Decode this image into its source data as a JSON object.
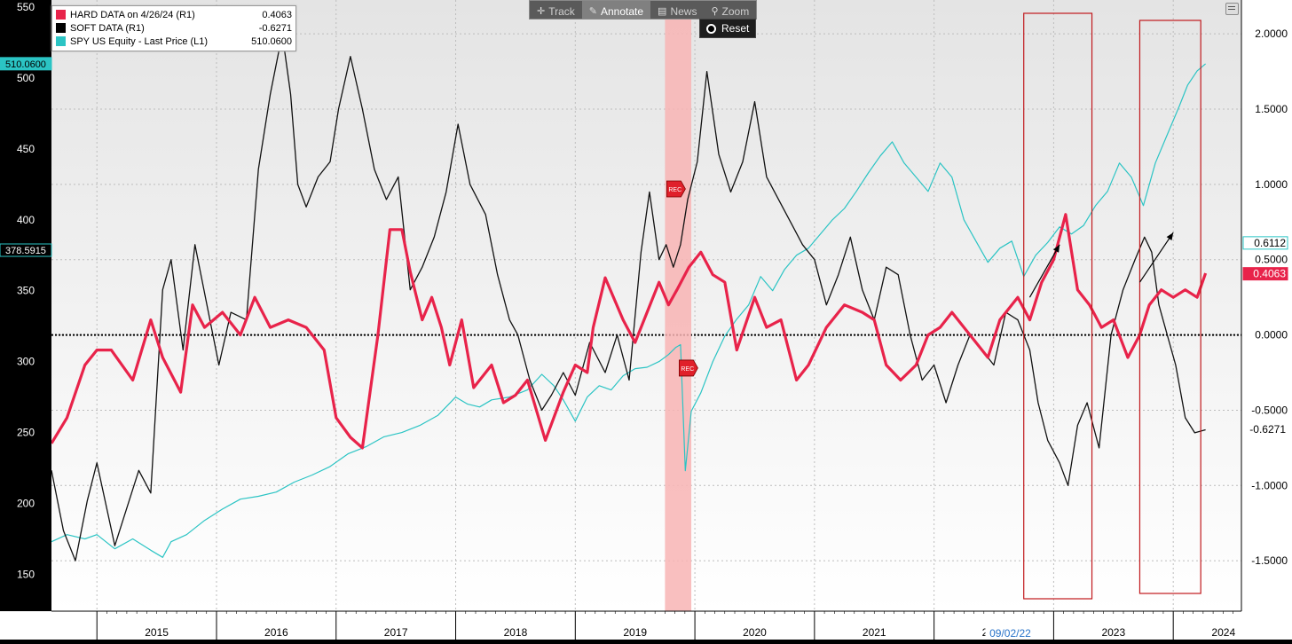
{
  "toolbar": {
    "buttons": [
      {
        "label": "Track",
        "icon": "crosshair-icon",
        "active": false
      },
      {
        "label": "Annotate",
        "icon": "pencil-icon",
        "active": true
      },
      {
        "label": "News",
        "icon": "news-icon",
        "active": false
      },
      {
        "label": "Zoom",
        "icon": "magnifier-icon",
        "active": false
      }
    ],
    "reset_label": "Reset"
  },
  "legend": [
    {
      "name": "HARD DATA on 4/26/24 (R1)",
      "value": "0.4063",
      "color": "#e8234a"
    },
    {
      "name": "SOFT DATA (R1)",
      "value": "-0.6271",
      "color": "#000000"
    },
    {
      "name": "SPY US Equity - Last Price (L1)",
      "value": "510.0600",
      "color": "#2bc4c4"
    }
  ],
  "chart_data": {
    "type": "line",
    "title": "",
    "x_axis": {
      "range": [
        2014.62,
        2024.57
      ],
      "year_labels": [
        "2015",
        "2016",
        "2017",
        "2018",
        "2019",
        "2020",
        "2021",
        "2022",
        "2023",
        "2024"
      ],
      "date_flag": "09/02/22"
    },
    "left_axis": {
      "range": [
        124,
        555
      ],
      "ticks": [
        150,
        200,
        250,
        300,
        350,
        400,
        450,
        500,
        550
      ],
      "tick_labels": [
        "150",
        "200",
        "250",
        "300",
        "350",
        "400",
        "450",
        "500",
        "550"
      ],
      "flags": [
        "510.0600",
        "378.5915"
      ]
    },
    "right_axis": {
      "range": [
        -1.835,
        2.225
      ],
      "ticks": [
        -1.5,
        -1.0,
        -0.5,
        0.0,
        0.5,
        1.0,
        1.5,
        2.0
      ],
      "tick_labels": [
        "-1.5000",
        "-1.0000",
        "-0.5000",
        "0.0000",
        "0.5000",
        "1.0000",
        "1.5000",
        "2.0000"
      ],
      "flags": [
        "0.6112",
        "0.4063",
        "-0.6271"
      ],
      "zero_line": 0.0
    },
    "grid": true,
    "legend_position": "top-left",
    "recession_band": {
      "from": 2019.75,
      "to": 2019.97,
      "label": "REC",
      "color": "#f8b4b4"
    },
    "highlight_boxes": [
      {
        "from": 2022.75,
        "to": 2023.32
      },
      {
        "from": 2023.72,
        "to": 2024.23
      }
    ],
    "arrows": [
      {
        "x1": 2022.8,
        "y1": 0.25,
        "x2": 2023.05,
        "y2": 0.6
      },
      {
        "x1": 2023.72,
        "y1": 0.35,
        "x2": 2024.0,
        "y2": 0.68
      }
    ],
    "series": [
      {
        "name": "HARD DATA on 4/26/24 (R1)",
        "axis": "right",
        "color": "#e8234a",
        "width": 3.2,
        "x": [
          2014.62,
          2014.75,
          2014.9,
          2015.0,
          2015.12,
          2015.3,
          2015.45,
          2015.55,
          2015.7,
          2015.8,
          2015.9,
          2016.05,
          2016.2,
          2016.32,
          2016.45,
          2016.6,
          2016.75,
          2016.9,
          2017.0,
          2017.12,
          2017.22,
          2017.35,
          2017.45,
          2017.55,
          2017.62,
          2017.72,
          2017.8,
          2017.88,
          2017.95,
          2018.05,
          2018.15,
          2018.3,
          2018.4,
          2018.5,
          2018.6,
          2018.75,
          2018.9,
          2019.0,
          2019.1,
          2019.15,
          2019.25,
          2019.4,
          2019.5,
          2019.6,
          2019.7,
          2019.78,
          2019.85,
          2019.95,
          2020.05,
          2020.15,
          2020.25,
          2020.35,
          2020.5,
          2020.6,
          2020.72,
          2020.85,
          2020.95,
          2021.1,
          2021.25,
          2021.4,
          2021.5,
          2021.6,
          2021.72,
          2021.85,
          2021.95,
          2022.05,
          2022.15,
          2022.3,
          2022.45,
          2022.55,
          2022.7,
          2022.8,
          2022.9,
          2023.0,
          2023.1,
          2023.2,
          2023.3,
          2023.4,
          2023.5,
          2023.62,
          2023.72,
          2023.8,
          2023.9,
          2024.0,
          2024.1,
          2024.2,
          2024.27
        ],
        "values": [
          -0.72,
          -0.55,
          -0.2,
          -0.1,
          -0.1,
          -0.3,
          0.1,
          -0.15,
          -0.38,
          0.2,
          0.05,
          0.15,
          0.0,
          0.25,
          0.05,
          0.1,
          0.05,
          -0.1,
          -0.55,
          -0.68,
          -0.75,
          0.0,
          0.7,
          0.7,
          0.42,
          0.1,
          0.25,
          0.05,
          -0.2,
          0.1,
          -0.35,
          -0.2,
          -0.45,
          -0.4,
          -0.3,
          -0.7,
          -0.38,
          -0.2,
          -0.25,
          0.05,
          0.38,
          0.1,
          -0.05,
          0.15,
          0.35,
          0.2,
          0.3,
          0.45,
          0.55,
          0.4,
          0.35,
          -0.1,
          0.25,
          0.05,
          0.1,
          -0.3,
          -0.2,
          0.05,
          0.2,
          0.15,
          0.1,
          -0.2,
          -0.3,
          -0.2,
          0.0,
          0.05,
          0.15,
          0.0,
          -0.15,
          0.1,
          0.25,
          0.1,
          0.35,
          0.5,
          0.8,
          0.3,
          0.2,
          0.05,
          0.1,
          -0.15,
          0.0,
          0.2,
          0.3,
          0.25,
          0.3,
          0.25,
          0.41
        ]
      },
      {
        "name": "SOFT DATA (R1)",
        "axis": "right",
        "color": "#111111",
        "width": 1.3,
        "x": [
          2014.62,
          2014.72,
          2014.82,
          2014.92,
          2015.0,
          2015.15,
          2015.35,
          2015.45,
          2015.55,
          2015.62,
          2015.72,
          2015.82,
          2015.92,
          2016.02,
          2016.12,
          2016.25,
          2016.35,
          2016.45,
          2016.55,
          2016.62,
          2016.68,
          2016.75,
          2016.85,
          2016.95,
          2017.02,
          2017.12,
          2017.22,
          2017.32,
          2017.42,
          2017.52,
          2017.62,
          2017.72,
          2017.82,
          2017.92,
          2018.02,
          2018.12,
          2018.25,
          2018.35,
          2018.45,
          2018.52,
          2018.62,
          2018.72,
          2018.8,
          2018.9,
          2019.0,
          2019.12,
          2019.25,
          2019.35,
          2019.45,
          2019.55,
          2019.62,
          2019.7,
          2019.76,
          2019.82,
          2019.88,
          2019.94,
          2020.02,
          2020.1,
          2020.2,
          2020.3,
          2020.4,
          2020.5,
          2020.6,
          2020.7,
          2020.8,
          2020.9,
          2021.0,
          2021.1,
          2021.2,
          2021.3,
          2021.4,
          2021.5,
          2021.6,
          2021.7,
          2021.8,
          2021.9,
          2022.0,
          2022.1,
          2022.2,
          2022.3,
          2022.4,
          2022.5,
          2022.6,
          2022.7,
          2022.8,
          2022.87,
          2022.95,
          2023.05,
          2023.12,
          2023.2,
          2023.28,
          2023.38,
          2023.48,
          2023.58,
          2023.68,
          2023.76,
          2023.82,
          2023.88,
          2023.95,
          2024.02,
          2024.1,
          2024.18,
          2024.27
        ],
        "values": [
          -0.9,
          -1.3,
          -1.5,
          -1.1,
          -0.85,
          -1.4,
          -0.9,
          -1.05,
          0.3,
          0.5,
          -0.1,
          0.6,
          0.2,
          -0.2,
          0.15,
          0.1,
          1.1,
          1.6,
          2.0,
          1.6,
          1.0,
          0.85,
          1.05,
          1.15,
          1.5,
          1.85,
          1.5,
          1.1,
          0.9,
          1.05,
          0.3,
          0.45,
          0.65,
          0.95,
          1.4,
          1.0,
          0.8,
          0.4,
          0.1,
          0.0,
          -0.3,
          -0.5,
          -0.4,
          -0.25,
          -0.4,
          -0.05,
          -0.25,
          0.0,
          -0.3,
          0.55,
          0.95,
          0.5,
          0.6,
          0.45,
          0.6,
          0.9,
          1.15,
          1.75,
          1.2,
          0.95,
          1.15,
          1.55,
          1.05,
          0.9,
          0.75,
          0.6,
          0.5,
          0.2,
          0.4,
          0.65,
          0.3,
          0.1,
          0.45,
          0.4,
          0.0,
          -0.3,
          -0.2,
          -0.45,
          -0.2,
          0.0,
          -0.1,
          -0.2,
          0.15,
          0.1,
          -0.1,
          -0.45,
          -0.7,
          -0.85,
          -1.0,
          -0.6,
          -0.45,
          -0.75,
          0.0,
          0.3,
          0.5,
          0.65,
          0.55,
          0.2,
          0.0,
          -0.2,
          -0.55,
          -0.65,
          -0.63
        ]
      },
      {
        "name": "SPY US Equity - Last Price (L1)",
        "axis": "left",
        "color": "#2bc4c4",
        "width": 1.2,
        "x": [
          2014.62,
          2014.75,
          2014.9,
          2015.0,
          2015.15,
          2015.3,
          2015.45,
          2015.55,
          2015.62,
          2015.75,
          2015.9,
          2016.05,
          2016.2,
          2016.35,
          2016.5,
          2016.65,
          2016.8,
          2016.95,
          2017.1,
          2017.25,
          2017.4,
          2017.55,
          2017.7,
          2017.85,
          2018.0,
          2018.1,
          2018.2,
          2018.3,
          2018.45,
          2018.6,
          2018.72,
          2018.82,
          2018.9,
          2019.0,
          2019.1,
          2019.2,
          2019.3,
          2019.4,
          2019.5,
          2019.6,
          2019.7,
          2019.78,
          2019.84,
          2019.88,
          2019.92,
          2019.97,
          2020.05,
          2020.15,
          2020.25,
          2020.35,
          2020.45,
          2020.55,
          2020.65,
          2020.75,
          2020.85,
          2020.95,
          2021.05,
          2021.15,
          2021.25,
          2021.35,
          2021.45,
          2021.55,
          2021.65,
          2021.75,
          2021.85,
          2021.95,
          2022.05,
          2022.15,
          2022.25,
          2022.35,
          2022.45,
          2022.55,
          2022.65,
          2022.75,
          2022.85,
          2022.95,
          2023.05,
          2023.15,
          2023.25,
          2023.35,
          2023.45,
          2023.55,
          2023.65,
          2023.75,
          2023.85,
          2023.95,
          2024.05,
          2024.12,
          2024.2,
          2024.27
        ],
        "values": [
          173,
          178,
          175,
          178,
          168,
          175,
          167,
          162,
          173,
          178,
          188,
          196,
          203,
          205,
          208,
          215,
          220,
          226,
          235,
          240,
          247,
          250,
          255,
          262,
          275,
          270,
          268,
          273,
          275,
          280,
          291,
          283,
          273,
          258,
          275,
          283,
          280,
          290,
          295,
          296,
          300,
          305,
          310,
          312,
          223,
          265,
          278,
          300,
          318,
          330,
          340,
          360,
          350,
          365,
          375,
          380,
          390,
          400,
          408,
          420,
          433,
          445,
          455,
          440,
          430,
          420,
          440,
          430,
          400,
          385,
          370,
          380,
          385,
          360,
          375,
          384,
          395,
          390,
          396,
          410,
          420,
          440,
          430,
          410,
          440,
          460,
          480,
          495,
          505,
          510
        ]
      }
    ]
  }
}
